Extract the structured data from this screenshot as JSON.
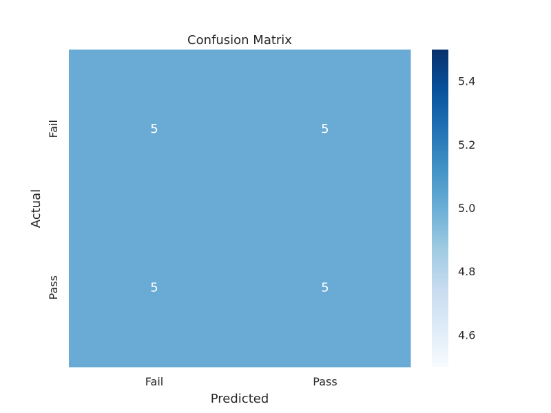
{
  "chart_data": {
    "type": "heatmap",
    "title": "Confusion Matrix",
    "xlabel": "Predicted",
    "ylabel": "Actual",
    "x_categories": [
      "Fail",
      "Pass"
    ],
    "y_categories": [
      "Fail",
      "Pass"
    ],
    "values": [
      [
        5,
        5
      ],
      [
        5,
        5
      ]
    ],
    "annotations": [
      [
        "5",
        "5"
      ],
      [
        "5",
        "5"
      ]
    ],
    "colormap": "Blues",
    "colorbar": {
      "range": [
        4.5,
        5.5
      ],
      "ticks": [
        4.6,
        4.8,
        5.0,
        5.2,
        5.4
      ],
      "tick_labels": [
        "4.6",
        "4.8",
        "5.0",
        "5.2",
        "5.4"
      ]
    },
    "cell_color": "#6aabd6",
    "colorbar_colors": [
      "#f7fbff",
      "#deebf7",
      "#c6dbef",
      "#9ecae1",
      "#6baed6",
      "#4292c6",
      "#2171b5",
      "#08519c",
      "#08306b"
    ],
    "annotation_color": "#ffffff",
    "text_color": "#262626",
    "grid": false
  }
}
